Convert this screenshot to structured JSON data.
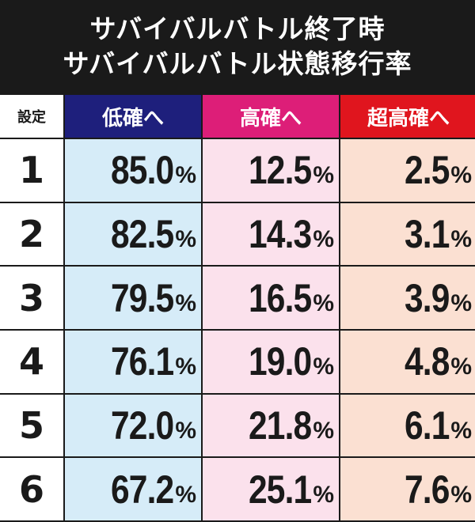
{
  "title": {
    "line1": "サバイバルバトル終了時",
    "line2": "サバイバルバトル状態移行率"
  },
  "headers": {
    "setting": "設定",
    "low": "低確へ",
    "high": "高確へ",
    "super": "超高確へ"
  },
  "percent_sign": "%",
  "colors": {
    "low_header": "#1e1f7c",
    "high_header": "#dd1e78",
    "super_header": "#e0151e",
    "low_cell": "#d6ecf8",
    "high_cell": "#fbe1ec",
    "super_cell": "#fbe0d2"
  },
  "rows": [
    {
      "setting": "1",
      "low": "85.0",
      "high": "12.5",
      "super": "2.5"
    },
    {
      "setting": "2",
      "low": "82.5",
      "high": "14.3",
      "super": "3.1"
    },
    {
      "setting": "3",
      "low": "79.5",
      "high": "16.5",
      "super": "3.9"
    },
    {
      "setting": "4",
      "low": "76.1",
      "high": "19.0",
      "super": "4.8"
    },
    {
      "setting": "5",
      "low": "72.0",
      "high": "21.8",
      "super": "6.1"
    },
    {
      "setting": "6",
      "low": "67.2",
      "high": "25.1",
      "super": "7.6"
    }
  ]
}
